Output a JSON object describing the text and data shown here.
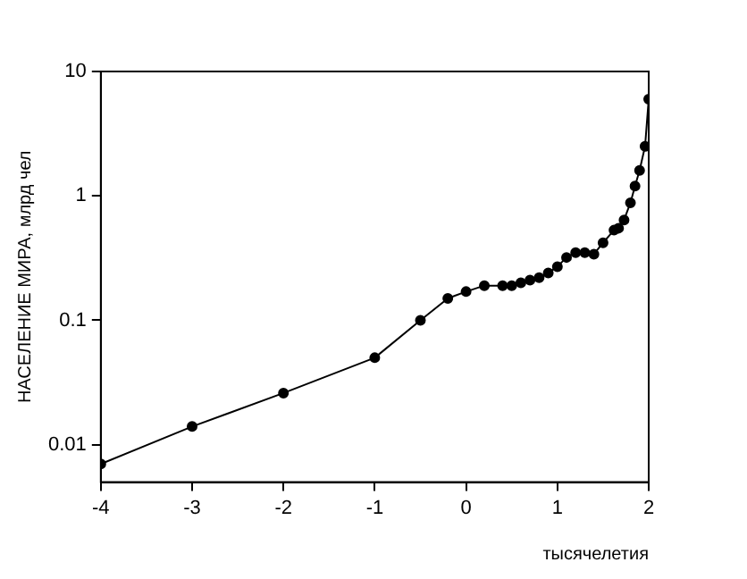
{
  "chart_data": {
    "type": "line",
    "xlabel": "тысячелетия",
    "ylabel": "НАСЕЛЕНИЕ МИРА, млрд чел",
    "log": "y",
    "grid": false,
    "legend": false,
    "marker": "circle",
    "line_style": "solid",
    "xlim": [
      -4,
      2
    ],
    "xticks": [
      -4,
      -3,
      -2,
      -1,
      0,
      1,
      2
    ],
    "ylim": [
      0.005,
      10
    ],
    "yticks": [
      0.01,
      0.1,
      1,
      10
    ],
    "series": [
      {
        "color": "#000000",
        "x": [
          -4,
          -3,
          -2,
          -1,
          -0.5,
          -0.2,
          0,
          0.2,
          0.4,
          0.5,
          0.6,
          0.7,
          0.8,
          0.9,
          1.0,
          1.1,
          1.2,
          1.3,
          1.4,
          1.5,
          1.62,
          1.67,
          1.73,
          1.8,
          1.85,
          1.9,
          1.96,
          2.0
        ],
        "values": [
          0.007,
          0.014,
          0.026,
          0.05,
          0.1,
          0.15,
          0.17,
          0.19,
          0.19,
          0.19,
          0.2,
          0.21,
          0.22,
          0.24,
          0.27,
          0.32,
          0.35,
          0.35,
          0.34,
          0.42,
          0.53,
          0.55,
          0.64,
          0.88,
          1.2,
          1.6,
          2.5,
          6.0
        ]
      }
    ]
  }
}
